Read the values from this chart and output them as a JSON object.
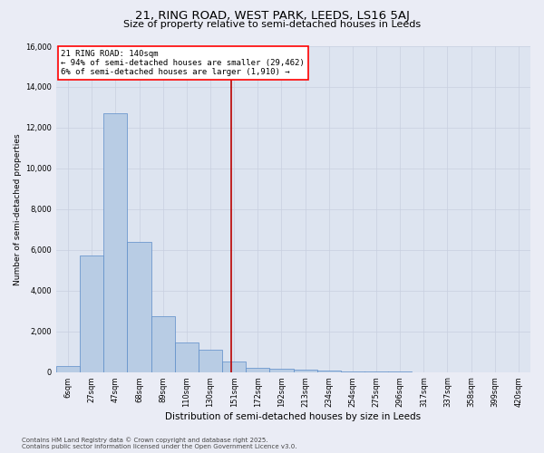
{
  "title_line1": "21, RING ROAD, WEST PARK, LEEDS, LS16 5AJ",
  "title_line2": "Size of property relative to semi-detached houses in Leeds",
  "xlabel": "Distribution of semi-detached houses by size in Leeds",
  "ylabel": "Number of semi-detached properties",
  "annotation_title": "21 RING ROAD: 140sqm",
  "annotation_line2": "← 94% of semi-detached houses are smaller (29,462)",
  "annotation_line3": "6% of semi-detached houses are larger (1,910) →",
  "footer_line1": "Contains HM Land Registry data © Crown copyright and database right 2025.",
  "footer_line2": "Contains public sector information licensed under the Open Government Licence v3.0.",
  "bar_labels": [
    "6sqm",
    "27sqm",
    "47sqm",
    "68sqm",
    "89sqm",
    "110sqm",
    "130sqm",
    "151sqm",
    "172sqm",
    "192sqm",
    "213sqm",
    "234sqm",
    "254sqm",
    "275sqm",
    "296sqm",
    "317sqm",
    "337sqm",
    "358sqm",
    "399sqm",
    "420sqm"
  ],
  "bar_values": [
    310,
    5700,
    12700,
    6400,
    2750,
    1450,
    1080,
    520,
    210,
    150,
    100,
    55,
    25,
    10,
    5,
    2,
    1,
    0,
    0,
    0
  ],
  "bar_color": "#b8cce4",
  "bar_edge_color": "#5b8cc8",
  "vline_index": 6.87,
  "vline_color": "#bb0000",
  "ylim_max": 16000,
  "yticks": [
    0,
    2000,
    4000,
    6000,
    8000,
    10000,
    12000,
    14000,
    16000
  ],
  "grid_color": "#c8cfe0",
  "fig_bg_color": "#eaecf5",
  "ax_bg_color": "#dde4f0",
  "title1_fontsize": 9.5,
  "title2_fontsize": 8.0,
  "xlabel_fontsize": 7.5,
  "ylabel_fontsize": 6.5,
  "tick_fontsize": 6.0,
  "annot_fontsize": 6.5,
  "footer_fontsize": 5.0
}
